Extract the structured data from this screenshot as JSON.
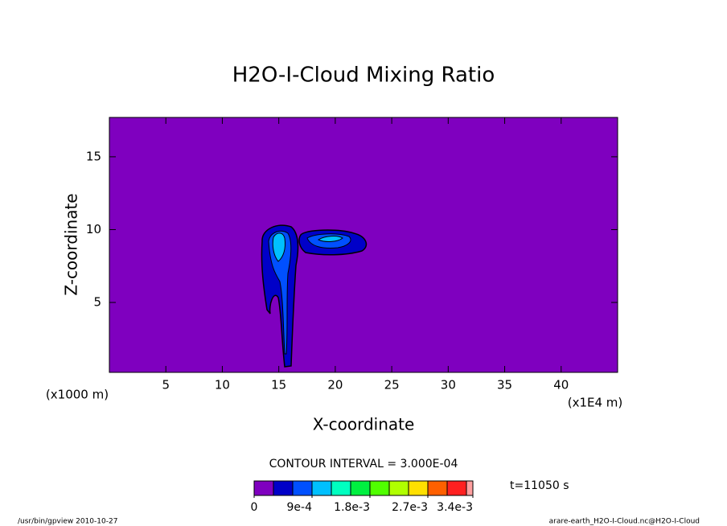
{
  "chart_data": {
    "type": "contour",
    "title": "H2O-I-Cloud Mixing Ratio",
    "x_label": "X-coordinate",
    "y_label": "Z-coordinate",
    "y_unit": "(x1000 m)",
    "x_unit": "(x1E4 m)",
    "xlim": [
      0,
      45
    ],
    "ylim": [
      0.2,
      17.7
    ],
    "xticks": [
      5,
      10,
      15,
      20,
      25,
      30,
      35,
      40
    ],
    "yticks": [
      5,
      10,
      15
    ],
    "background_color": "#7f00bf",
    "contour_interval_label": "CONTOUR INTERVAL = 3.000E-04",
    "time_label": "t=11050 s",
    "footer_left": "/usr/bin/gpview  2010-10-27",
    "footer_right": "arare-earth_H2O-I-Cloud.nc@H2O-I-Cloud",
    "colorbar": {
      "levels": [
        0,
        0.0003,
        0.0006,
        0.0009,
        0.0012,
        0.0015,
        0.0018,
        0.0021,
        0.0024,
        0.0027,
        0.003,
        0.0033,
        0.0034
      ],
      "colors": [
        "#7f00bf",
        "#0000c8",
        "#0050ff",
        "#00c0ff",
        "#00ffc0",
        "#00f040",
        "#50ff00",
        "#b0ff00",
        "#ffe000",
        "#ff6000",
        "#ff2020",
        "#ffa0a0"
      ],
      "ticks": [
        {
          "value": 0,
          "label": "0"
        },
        {
          "value": 0.0009,
          "label": "9e-4"
        },
        {
          "value": 0.0018,
          "label": "1.8e-3"
        },
        {
          "value": 0.0027,
          "label": "2.7e-3"
        },
        {
          "value": 0.0034,
          "label": "3.4e-3"
        }
      ]
    }
  }
}
